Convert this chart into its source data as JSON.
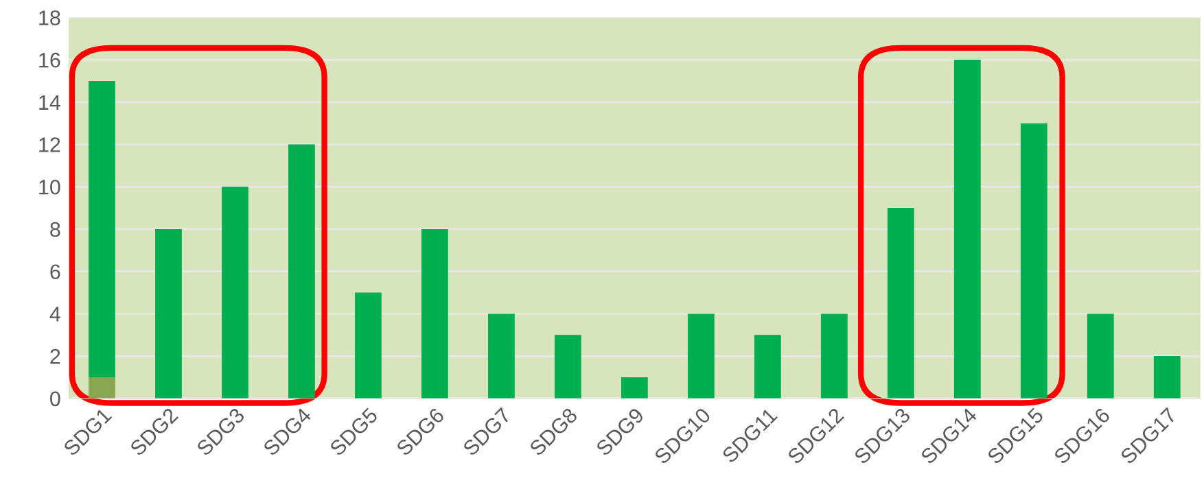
{
  "chart_data": {
    "type": "bar",
    "stacked": true,
    "categories": [
      "SDG1",
      "SDG2",
      "SDG3",
      "SDG4",
      "SDG5",
      "SDG6",
      "SDG7",
      "SDG8",
      "SDG9",
      "SDG10",
      "SDG11",
      "SDG12",
      "SDG13",
      "SDG14",
      "SDG15",
      "SDG16",
      "SDG17"
    ],
    "series": [
      {
        "color": "#8aa650",
        "values": [
          1,
          null,
          null,
          null,
          null,
          null,
          null,
          null,
          null,
          null,
          null,
          null,
          null,
          null,
          null,
          null,
          null
        ]
      },
      {
        "color": "#00b050",
        "values": [
          14,
          8,
          10,
          12,
          5,
          8,
          4,
          3,
          1,
          4,
          3,
          4,
          9,
          16,
          13,
          4,
          2
        ]
      }
    ],
    "ylim": [
      0,
      18
    ],
    "yticks": [
      0,
      2,
      4,
      6,
      8,
      10,
      12,
      14,
      16,
      18
    ],
    "grid": "y"
  }
}
